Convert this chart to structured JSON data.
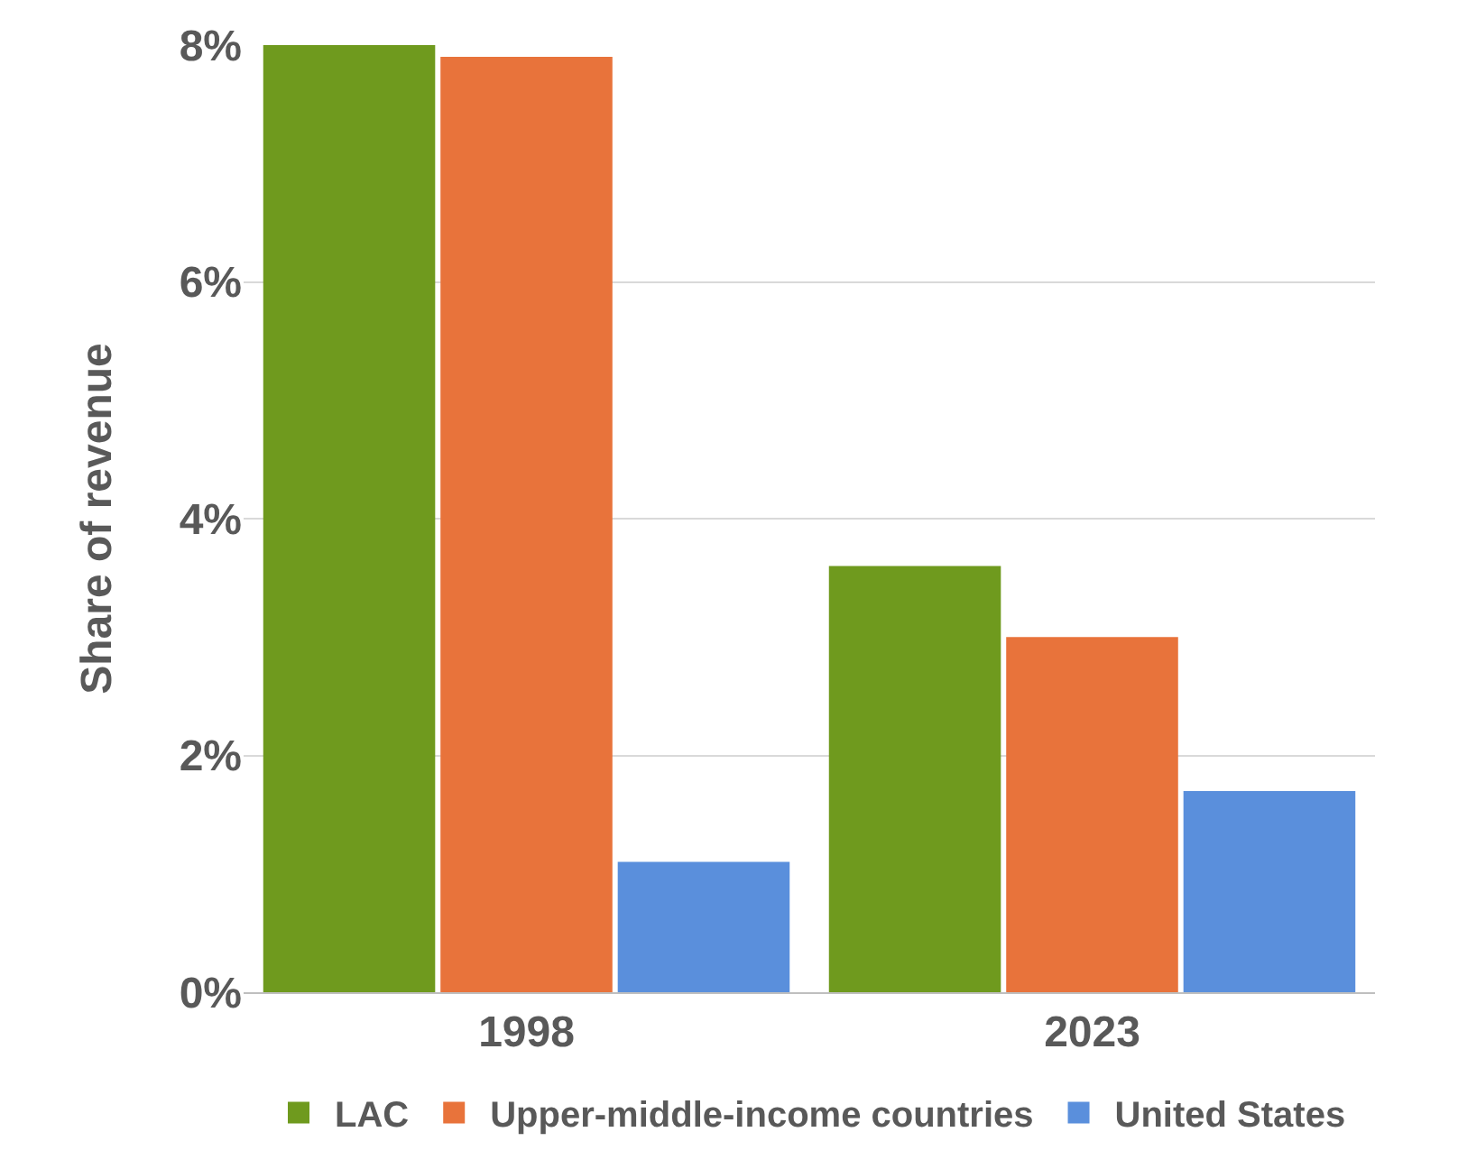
{
  "chart_data": {
    "type": "bar",
    "ylabel": "Share of revenue",
    "categories": [
      "1998",
      "2023"
    ],
    "series": [
      {
        "name": "LAC",
        "color": "#6f9a1e",
        "values": [
          8.0,
          3.6
        ]
      },
      {
        "name": "Upper-middle-income countries",
        "color": "#e8733b",
        "values": [
          7.9,
          3.0
        ]
      },
      {
        "name": "United States",
        "color": "#5a8fdc",
        "values": [
          1.1,
          1.7
        ]
      }
    ],
    "ylim": [
      0,
      8
    ],
    "yticks": [
      {
        "value": 0,
        "label": "0%"
      },
      {
        "value": 2,
        "label": "2%"
      },
      {
        "value": 4,
        "label": "4%"
      },
      {
        "value": 6,
        "label": "6%"
      },
      {
        "value": 8,
        "label": "8%"
      }
    ],
    "grid": "y",
    "legend": "bottom"
  }
}
